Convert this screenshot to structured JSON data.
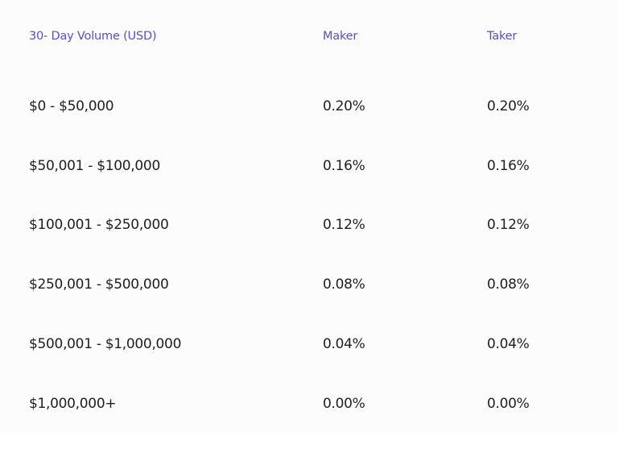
{
  "table": {
    "headers": {
      "volume": "30- Day Volume (USD)",
      "maker": "Maker",
      "taker": "Taker"
    },
    "rows": [
      {
        "volume": "$0 - $50,000",
        "maker": "0.20%",
        "taker": "0.20%"
      },
      {
        "volume": "$50,001 - $100,000",
        "maker": "0.16%",
        "taker": "0.16%"
      },
      {
        "volume": "$100,001 - $250,000",
        "maker": "0.12%",
        "taker": "0.12%"
      },
      {
        "volume": "$250,001 - $500,000",
        "maker": "0.08%",
        "taker": "0.08%"
      },
      {
        "volume": "$500,001 - $1,000,000",
        "maker": "0.04%",
        "taker": "0.04%"
      },
      {
        "volume": "$1,000,000+",
        "maker": "0.00%",
        "taker": "0.00%"
      }
    ]
  },
  "colors": {
    "header_text": "#5b4ec6",
    "body_text": "#1e1e26",
    "panel_background": "#fcfcfd"
  }
}
